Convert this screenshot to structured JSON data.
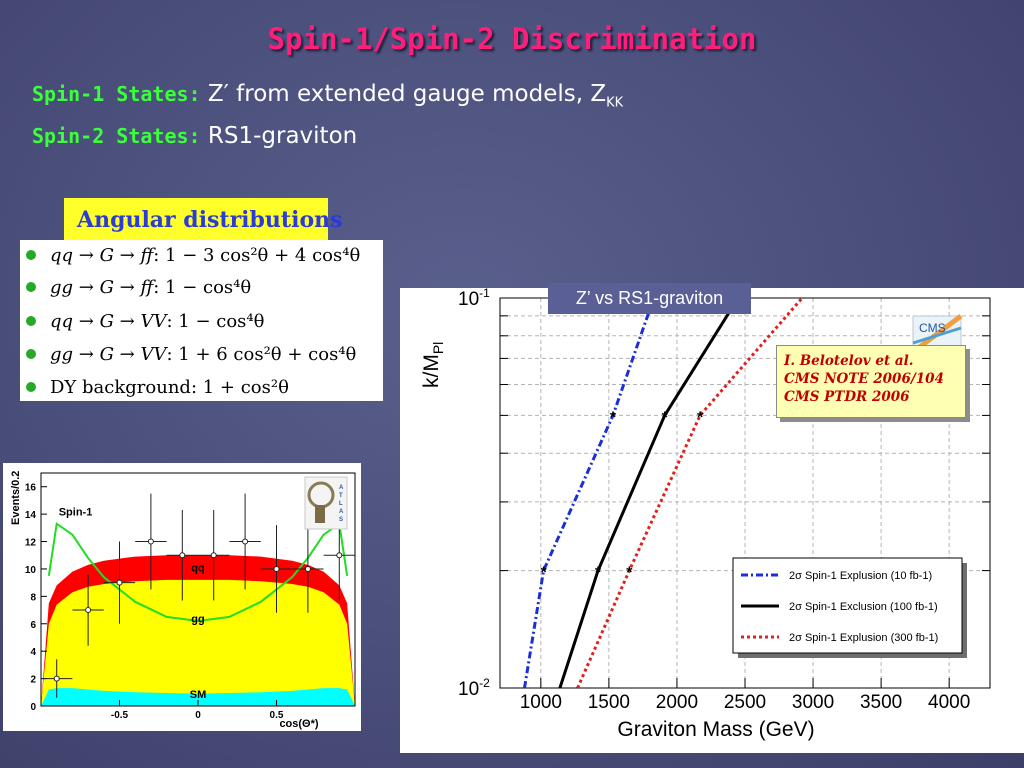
{
  "slide": {
    "title": "Spin-1/Spin-2 Discrimination",
    "spin1_label": "Spin-1 States:",
    "spin1_text": "Z′ from extended gauge models, Z",
    "spin1_sub": "KK",
    "spin2_label": "Spin-2 States:",
    "spin2_text": "RS1-graviton",
    "angular_title": "Angular distributions",
    "graph_tab": "Z’ vs RS1-graviton"
  },
  "formulas": [
    {
      "lhs": "qq → G → ff",
      "rhs": ": 1 − 3 cos²θ + 4 cos⁴θ"
    },
    {
      "lhs": "gg → G → ff",
      "rhs": ": 1 − cos⁴θ"
    },
    {
      "lhs": "qq → G → VV",
      "rhs": ": 1 − cos⁴θ"
    },
    {
      "lhs": "gg → G → VV",
      "rhs": ": 1 + 6 cos²θ + cos⁴θ"
    },
    {
      "lhs": "DY background",
      "rhs": ": 1 + cos²θ"
    }
  ],
  "reference": {
    "line1": "I. Belotelov et al.",
    "line2": "CMS NOTE 2006/104",
    "line3": "CMS PTDR 2006"
  },
  "colors": {
    "title": "#ff1f7a",
    "labels": "#3cff3c",
    "badge": "#ffff2a",
    "cms_blue": "#1a2fd6",
    "cms_red": "#e0201b",
    "atlas_red": "#ff0000",
    "atlas_yellow": "#ffff00",
    "atlas_cyan": "#00ffff",
    "atlas_green": "#22dd22"
  },
  "chart_data": [
    {
      "type": "area",
      "xlabel": "cos(Θ*)",
      "ylabel": "Events/0.2",
      "xlim": [
        -1,
        1
      ],
      "ylim": [
        0,
        17
      ],
      "x_ticks": [
        {
          "v": -0.5,
          "label": "-0.5"
        },
        {
          "v": 0,
          "label": "0"
        },
        {
          "v": 0.5,
          "label": "0.5"
        }
      ],
      "y_ticks": [
        0,
        2,
        4,
        6,
        8,
        10,
        12,
        14,
        16
      ],
      "annotations": [
        "Spin-1",
        "qq",
        "gg",
        "SM"
      ],
      "logo": "ATLAS",
      "bands": {
        "x": [
          -1,
          -0.95,
          -0.9,
          -0.8,
          -0.7,
          -0.6,
          -0.4,
          -0.2,
          0,
          0.2,
          0.4,
          0.6,
          0.7,
          0.8,
          0.9,
          0.95,
          1
        ],
        "sm": [
          0,
          1.2,
          1.3,
          1.3,
          1.2,
          1.1,
          1.0,
          0.95,
          0.9,
          0.95,
          1.0,
          1.1,
          1.2,
          1.3,
          1.3,
          1.2,
          0
        ],
        "gg": [
          0,
          6.0,
          7.4,
          8.3,
          8.7,
          8.9,
          9.1,
          9.2,
          9.2,
          9.2,
          9.1,
          8.9,
          8.7,
          8.3,
          7.4,
          6.0,
          0
        ],
        "qq": [
          0,
          7.5,
          8.8,
          9.8,
          10.3,
          10.6,
          10.9,
          11.0,
          11.0,
          11.0,
          10.9,
          10.6,
          10.3,
          9.8,
          8.8,
          7.5,
          0
        ]
      },
      "spin1_curve": {
        "x": [
          -0.95,
          -0.9,
          -0.8,
          -0.7,
          -0.6,
          -0.4,
          -0.2,
          0,
          0.2,
          0.4,
          0.6,
          0.7,
          0.8,
          0.9,
          0.95
        ],
        "y": [
          9.5,
          13.3,
          12.5,
          10.8,
          9.4,
          7.6,
          6.5,
          6.2,
          6.5,
          7.6,
          9.4,
          10.8,
          12.5,
          13.3,
          9.5
        ]
      },
      "data_points": [
        {
          "x": -0.9,
          "y": 2.0,
          "yerr": 1.4
        },
        {
          "x": -0.7,
          "y": 7.0,
          "yerr": 2.6
        },
        {
          "x": -0.5,
          "y": 9.0,
          "yerr": 3.0
        },
        {
          "x": -0.3,
          "y": 12.0,
          "yerr": 3.5
        },
        {
          "x": -0.1,
          "y": 11.0,
          "yerr": 3.3
        },
        {
          "x": 0.1,
          "y": 11.0,
          "yerr": 3.3
        },
        {
          "x": 0.3,
          "y": 12.0,
          "yerr": 3.5
        },
        {
          "x": 0.5,
          "y": 10.0,
          "yerr": 3.2
        },
        {
          "x": 0.7,
          "y": 10.0,
          "yerr": 3.2
        },
        {
          "x": 0.9,
          "y": 11.0,
          "yerr": 3.3
        }
      ]
    },
    {
      "type": "line",
      "xlabel": "Graviton Mass (GeV)",
      "ylabel": "k/M",
      "ylabel_sub": "Pl",
      "xlim": [
        700,
        4300
      ],
      "ylim": [
        0.01,
        0.1
      ],
      "yscale": "log",
      "x_ticks": [
        1000,
        1500,
        2000,
        2500,
        3000,
        3500,
        4000
      ],
      "y_tick_labels": [
        {
          "v": 0.1,
          "base": "10",
          "exp": "-1"
        },
        {
          "v": 0.01,
          "base": "10",
          "exp": "-2"
        }
      ],
      "logo": "CMS",
      "legend_position": "bottom-right",
      "series": [
        {
          "name": "2σ Spin-1 Explusion (10 fb-1)",
          "style": "dash-dot",
          "color": "#1a2fd6",
          "x": [
            880,
            1020,
            1530,
            1830
          ],
          "y": [
            0.01,
            0.02,
            0.05,
            0.1
          ],
          "markers": [
            [
              1020,
              0.02
            ],
            [
              1530,
              0.05
            ]
          ]
        },
        {
          "name": "2σ Spin-1 Exclusion (100 fb-1)",
          "style": "solid",
          "color": "#000000",
          "x": [
            1140,
            1420,
            1910,
            2450
          ],
          "y": [
            0.01,
            0.02,
            0.05,
            0.1
          ],
          "markers": [
            [
              1420,
              0.02
            ],
            [
              1910,
              0.05
            ]
          ]
        },
        {
          "name": "2σ Spin-1 Explusion (300 fb-1)",
          "style": "dotted",
          "color": "#e0201b",
          "x": [
            1270,
            1650,
            2170,
            2920
          ],
          "y": [
            0.01,
            0.02,
            0.05,
            0.1
          ],
          "markers": [
            [
              1650,
              0.02
            ],
            [
              2170,
              0.05
            ]
          ]
        }
      ]
    }
  ]
}
